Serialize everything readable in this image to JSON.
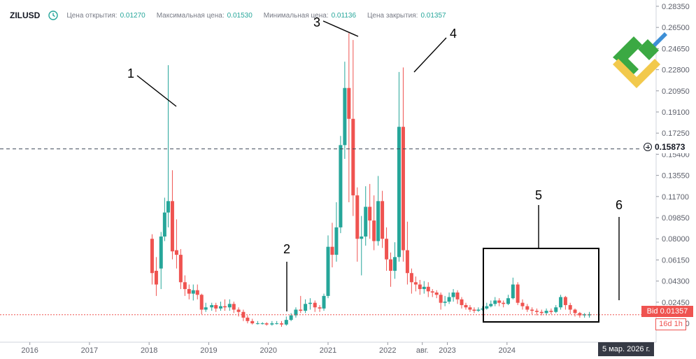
{
  "header": {
    "symbol": "ZILUSD",
    "open_label": "Цена открытия:",
    "open_value": "0.01270",
    "high_label": "Максимальная цена:",
    "high_value": "0.01530",
    "low_label": "Минимальная цена:",
    "low_value": "0.01136",
    "close_label": "Цена закрытия:",
    "close_value": "0.01357"
  },
  "price_axis": {
    "bid_label": "Bid 0.01357",
    "timeframe": "16d 1h",
    "crosshair_value": "0.15873",
    "crosshair_icon": "plus-circle-icon"
  },
  "time_axis": {
    "current_date": "5 мар. 2026 г."
  },
  "logo": {
    "colors": [
      "#3ba943",
      "#f2c94c",
      "#3d8fd6"
    ],
    "icon": "brand-logo-icon"
  },
  "colors": {
    "up": "#26a69a",
    "down": "#ef5350",
    "bid_line": "#ef5350",
    "crosshair_line": "#3c4656"
  },
  "chart_data": {
    "type": "candlestick",
    "symbol": "ZILUSD",
    "y_ticks": [
      "0.28350",
      "0.26500",
      "0.24650",
      "0.22800",
      "0.20950",
      "0.19100",
      "0.17250",
      "0.15400",
      "0.13550",
      "0.11700",
      "0.09850",
      "0.08000",
      "0.06150",
      "0.04300",
      "0.02450",
      "0.00600"
    ],
    "ylim": [
      -0.0105,
      0.289
    ],
    "x_ticks": [
      "2016",
      "2017",
      "2018",
      "2019",
      "2020",
      "2021",
      "2022",
      "авг.",
      "2023",
      "2024"
    ],
    "xlim": [
      2015.5,
      2026.5
    ],
    "crosshair_y": 0.15873,
    "bid": 0.01357,
    "candles": [
      [
        2018.05,
        0.08,
        0.05,
        0.084,
        0.04
      ],
      [
        2018.12,
        0.052,
        0.04,
        0.064,
        0.03
      ],
      [
        2018.2,
        0.054,
        0.082,
        0.086,
        0.036
      ],
      [
        2018.26,
        0.082,
        0.103,
        0.116,
        0.078
      ],
      [
        2018.32,
        0.103,
        0.113,
        0.232,
        0.09
      ],
      [
        2018.39,
        0.113,
        0.069,
        0.14,
        0.062
      ],
      [
        2018.46,
        0.07,
        0.066,
        0.097,
        0.054
      ],
      [
        2018.53,
        0.066,
        0.042,
        0.071,
        0.036
      ],
      [
        2018.6,
        0.042,
        0.036,
        0.048,
        0.03
      ],
      [
        2018.67,
        0.036,
        0.032,
        0.04,
        0.027
      ],
      [
        2018.74,
        0.032,
        0.035,
        0.04,
        0.026
      ],
      [
        2018.81,
        0.035,
        0.031,
        0.04,
        0.027
      ],
      [
        2018.88,
        0.031,
        0.018,
        0.032,
        0.014
      ],
      [
        2018.95,
        0.018,
        0.02,
        0.024,
        0.016
      ],
      [
        2019.05,
        0.02,
        0.022,
        0.024,
        0.017
      ],
      [
        2019.12,
        0.022,
        0.019,
        0.024,
        0.016
      ],
      [
        2019.2,
        0.019,
        0.021,
        0.025,
        0.017
      ],
      [
        2019.27,
        0.021,
        0.02,
        0.027,
        0.017
      ],
      [
        2019.35,
        0.02,
        0.023,
        0.027,
        0.017
      ],
      [
        2019.42,
        0.023,
        0.018,
        0.025,
        0.015
      ],
      [
        2019.5,
        0.018,
        0.016,
        0.02,
        0.012
      ],
      [
        2019.58,
        0.016,
        0.011,
        0.018,
        0.008
      ],
      [
        2019.65,
        0.011,
        0.008,
        0.013,
        0.006
      ],
      [
        2019.73,
        0.008,
        0.006,
        0.01,
        0.005
      ],
      [
        2019.82,
        0.006,
        0.006,
        0.008,
        0.005
      ],
      [
        2019.9,
        0.006,
        0.006,
        0.007,
        0.005
      ],
      [
        2019.97,
        0.006,
        0.005,
        0.007,
        0.004
      ],
      [
        2020.06,
        0.005,
        0.006,
        0.008,
        0.004
      ],
      [
        2020.14,
        0.006,
        0.006,
        0.008,
        0.005
      ],
      [
        2020.22,
        0.006,
        0.005,
        0.008,
        0.003
      ],
      [
        2020.3,
        0.005,
        0.009,
        0.012,
        0.004
      ],
      [
        2020.38,
        0.009,
        0.013,
        0.015,
        0.008
      ],
      [
        2020.46,
        0.013,
        0.018,
        0.02,
        0.011
      ],
      [
        2020.54,
        0.018,
        0.017,
        0.03,
        0.015
      ],
      [
        2020.62,
        0.017,
        0.023,
        0.027,
        0.015
      ],
      [
        2020.7,
        0.023,
        0.024,
        0.028,
        0.018
      ],
      [
        2020.78,
        0.024,
        0.02,
        0.026,
        0.016
      ],
      [
        2020.86,
        0.02,
        0.019,
        0.022,
        0.016
      ],
      [
        2020.93,
        0.019,
        0.03,
        0.032,
        0.017
      ],
      [
        2021.0,
        0.03,
        0.073,
        0.083,
        0.028
      ],
      [
        2021.07,
        0.073,
        0.066,
        0.094,
        0.055
      ],
      [
        2021.14,
        0.066,
        0.09,
        0.112,
        0.06
      ],
      [
        2021.21,
        0.09,
        0.162,
        0.17,
        0.085
      ],
      [
        2021.28,
        0.162,
        0.212,
        0.235,
        0.15
      ],
      [
        2021.35,
        0.212,
        0.185,
        0.26,
        0.112
      ],
      [
        2021.42,
        0.185,
        0.118,
        0.254,
        0.1
      ],
      [
        2021.49,
        0.118,
        0.08,
        0.125,
        0.06
      ],
      [
        2021.56,
        0.08,
        0.082,
        0.1,
        0.048
      ],
      [
        2021.63,
        0.082,
        0.108,
        0.126,
        0.074
      ],
      [
        2021.7,
        0.108,
        0.096,
        0.128,
        0.08
      ],
      [
        2021.77,
        0.096,
        0.078,
        0.118,
        0.07
      ],
      [
        2021.84,
        0.078,
        0.113,
        0.135,
        0.074
      ],
      [
        2021.91,
        0.113,
        0.08,
        0.122,
        0.072
      ],
      [
        2021.98,
        0.08,
        0.062,
        0.09,
        0.052
      ],
      [
        2022.05,
        0.062,
        0.052,
        0.068,
        0.038
      ],
      [
        2022.12,
        0.052,
        0.064,
        0.077,
        0.045
      ],
      [
        2022.19,
        0.064,
        0.178,
        0.226,
        0.06
      ],
      [
        2022.26,
        0.178,
        0.07,
        0.23,
        0.06
      ],
      [
        2022.33,
        0.07,
        0.05,
        0.095,
        0.04
      ],
      [
        2022.4,
        0.05,
        0.042,
        0.054,
        0.032
      ],
      [
        2022.47,
        0.042,
        0.04,
        0.047,
        0.034
      ],
      [
        2022.54,
        0.04,
        0.036,
        0.044,
        0.031
      ],
      [
        2022.61,
        0.036,
        0.038,
        0.043,
        0.032
      ],
      [
        2022.68,
        0.038,
        0.034,
        0.042,
        0.029
      ],
      [
        2022.75,
        0.034,
        0.033,
        0.036,
        0.029
      ],
      [
        2022.82,
        0.033,
        0.031,
        0.035,
        0.028
      ],
      [
        2022.89,
        0.031,
        0.024,
        0.033,
        0.018
      ],
      [
        2022.96,
        0.024,
        0.025,
        0.03,
        0.021
      ],
      [
        2023.03,
        0.025,
        0.029,
        0.033,
        0.023
      ],
      [
        2023.1,
        0.029,
        0.033,
        0.036,
        0.025
      ],
      [
        2023.17,
        0.033,
        0.027,
        0.035,
        0.023
      ],
      [
        2023.24,
        0.027,
        0.022,
        0.029,
        0.019
      ],
      [
        2023.31,
        0.022,
        0.02,
        0.024,
        0.018
      ],
      [
        2023.38,
        0.02,
        0.018,
        0.022,
        0.016
      ],
      [
        2023.45,
        0.018,
        0.017,
        0.02,
        0.015
      ],
      [
        2023.52,
        0.017,
        0.018,
        0.02,
        0.016
      ],
      [
        2023.59,
        0.018,
        0.019,
        0.021,
        0.017
      ],
      [
        2023.66,
        0.019,
        0.021,
        0.024,
        0.018
      ],
      [
        2023.73,
        0.021,
        0.023,
        0.026,
        0.02
      ],
      [
        2023.8,
        0.023,
        0.026,
        0.029,
        0.021
      ],
      [
        2023.87,
        0.026,
        0.024,
        0.028,
        0.021
      ],
      [
        2023.94,
        0.024,
        0.023,
        0.026,
        0.02
      ],
      [
        2024.02,
        0.023,
        0.028,
        0.031,
        0.022
      ],
      [
        2024.1,
        0.028,
        0.04,
        0.046,
        0.027
      ],
      [
        2024.18,
        0.04,
        0.024,
        0.042,
        0.022
      ],
      [
        2024.26,
        0.024,
        0.021,
        0.027,
        0.018
      ],
      [
        2024.34,
        0.021,
        0.018,
        0.023,
        0.016
      ],
      [
        2024.42,
        0.018,
        0.017,
        0.02,
        0.014
      ],
      [
        2024.5,
        0.017,
        0.016,
        0.019,
        0.013
      ],
      [
        2024.58,
        0.016,
        0.015,
        0.018,
        0.013
      ],
      [
        2024.66,
        0.015,
        0.017,
        0.019,
        0.013
      ],
      [
        2024.74,
        0.017,
        0.016,
        0.019,
        0.014
      ],
      [
        2024.82,
        0.016,
        0.02,
        0.022,
        0.015
      ],
      [
        2024.9,
        0.02,
        0.029,
        0.031,
        0.018
      ],
      [
        2024.98,
        0.029,
        0.022,
        0.03,
        0.018
      ],
      [
        2025.06,
        0.022,
        0.018,
        0.024,
        0.014
      ],
      [
        2025.14,
        0.018,
        0.015,
        0.019,
        0.012
      ],
      [
        2025.22,
        0.015,
        0.013,
        0.016,
        0.011
      ],
      [
        2025.3,
        0.013,
        0.014,
        0.015,
        0.011
      ],
      [
        2025.38,
        0.013,
        0.014,
        0.016,
        0.011
      ]
    ]
  },
  "annotations": [
    {
      "text": "1"
    },
    {
      "text": "2"
    },
    {
      "text": "3"
    },
    {
      "text": "4"
    },
    {
      "text": "5"
    },
    {
      "text": "6"
    }
  ]
}
